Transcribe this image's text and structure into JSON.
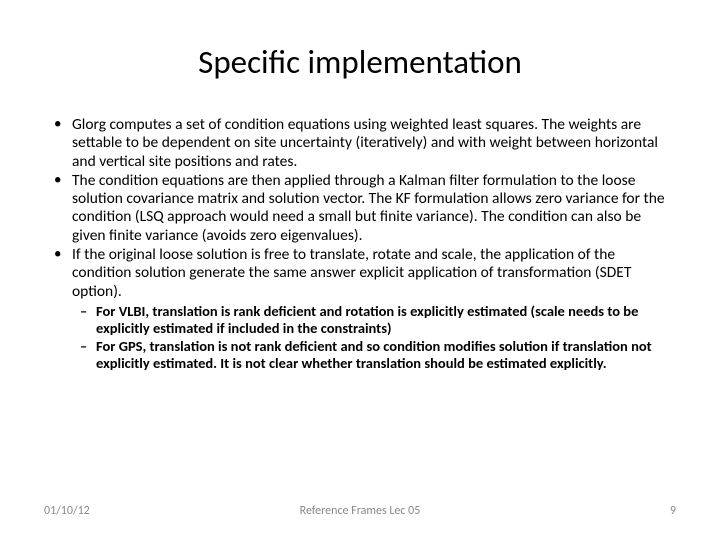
{
  "title": "Specific implementation",
  "bullets": [
    "Glorg computes a set of condition equations using weighted least squares. The weights are settable to be dependent on site uncertainty (iteratively) and with weight between horizontal and vertical site positions and rates.",
    "The condition equations are then applied through a Kalman filter formulation to the loose solution covariance matrix and solution vector. The KF formulation allows zero variance for the condition (LSQ approach would need a small but finite variance).  The condition can also be given finite variance (avoids zero eigenvalues).",
    "If the original loose solution is free to translate, rotate and scale, the application of the condition solution generate the same answer explicit application of transformation (SDET option)."
  ],
  "sub_bullets": [
    "For VLBI, translation is rank deficient and rotation is explicitly estimated (scale needs to be explicitly estimated if included in the constraints)",
    "For GPS, translation is not rank deficient and so condition modifies solution if translation not explicitly estimated.  It is not clear whether translation should be estimated explicitly."
  ],
  "footer": {
    "date": "01/10/12",
    "center": "Reference Frames Lec 05",
    "page": "9"
  },
  "style": {
    "background_color": "#ffffff",
    "text_color": "#000000",
    "footer_color": "#888888",
    "title_fontsize": 33,
    "body_fontsize": 15.5,
    "sub_fontsize": 14.5,
    "footer_fontsize": 12
  }
}
